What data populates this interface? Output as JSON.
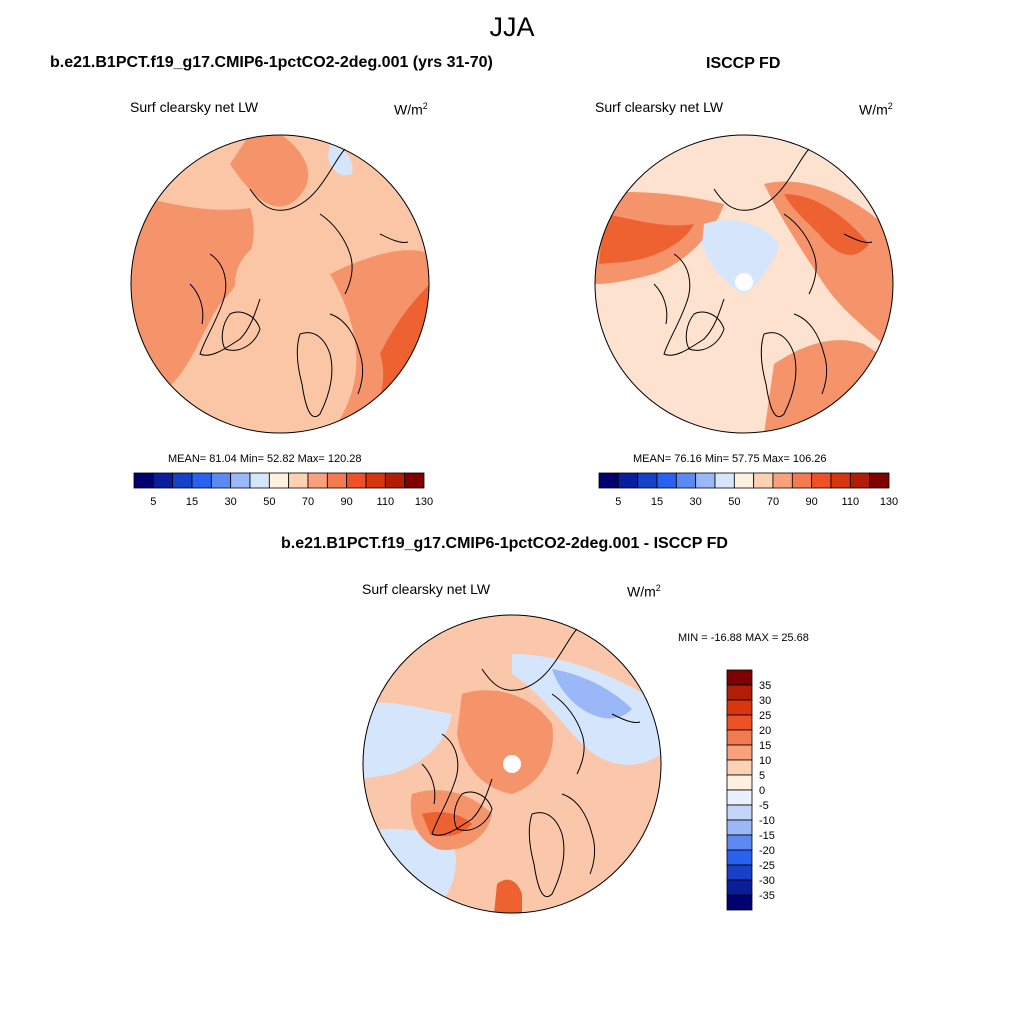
{
  "figure": {
    "season": "JJA",
    "panels": [
      {
        "id": "model",
        "title": "b.e21.B1PCT.f19_g17.CMIP6-1pctCO2-2deg.001 (yrs 31-70)",
        "variable": "Surf clearsky net LW",
        "units": "W/m",
        "units_exp": "2",
        "stats": "MEAN=  81.04  Min=  52.82  Max= 120.28"
      },
      {
        "id": "obs",
        "title": "ISCCP FD",
        "variable": "Surf clearsky net LW",
        "units": "W/m",
        "units_exp": "2",
        "stats": "MEAN=  76.16  Min=  57.75  Max= 106.26"
      },
      {
        "id": "diff",
        "title": "b.e21.B1PCT.f19_g17.CMIP6-1pctCO2-2deg.001 - ISCCP FD",
        "variable": "Surf clearsky net LW",
        "units": "W/m",
        "units_exp": "2",
        "stats": "MIN = -16.88 MAX =  25.68"
      }
    ],
    "colorbar_abs": {
      "colors": [
        "#00006e",
        "#0a1e9c",
        "#1641c8",
        "#2a62f0",
        "#5d8af2",
        "#9ab7f7",
        "#d5e5fb",
        "#fff0df",
        "#fdd1b3",
        "#f9a07c",
        "#f47a52",
        "#ee5126",
        "#d7360f",
        "#b21d08",
        "#7f0000"
      ],
      "tick_labels": [
        "5",
        "15",
        "30",
        "50",
        "70",
        "90",
        "110",
        "130"
      ]
    },
    "colorbar_diff": {
      "colors_top_to_bottom": [
        "#7f0000",
        "#b21d08",
        "#d7360f",
        "#ee5126",
        "#f47a52",
        "#f9a07c",
        "#fdd1b3",
        "#fff0df",
        "#e9f1fc",
        "#c3d6f7",
        "#9ab7f7",
        "#5d8af2",
        "#2a62f0",
        "#1641c8",
        "#0a1e9c",
        "#00006e"
      ],
      "tick_labels": [
        "35",
        "30",
        "25",
        "20",
        "15",
        "10",
        "5",
        "0",
        "-5",
        "-10",
        "-15",
        "-20",
        "-25",
        "-30",
        "-35"
      ]
    },
    "map_colors": {
      "model_base": "#fac6a6",
      "obs_base": "#fde2cf",
      "diff_base": "#fbc7aa",
      "warm_mid": "#f5946b",
      "warm_high": "#ee6232",
      "warm_max": "#d7360f",
      "cool_light": "#d5e5fb",
      "cool_mid": "#9ab7f7",
      "cool_deep": "#5d8af2"
    }
  }
}
